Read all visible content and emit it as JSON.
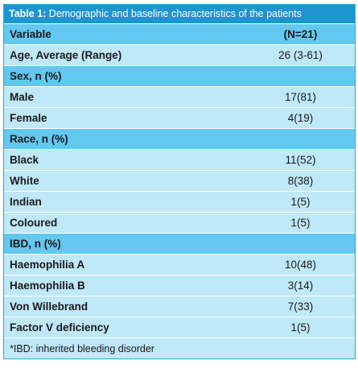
{
  "caption": {
    "label": "Table 1:",
    "text": " Demographic and baseline characteristics of the patients"
  },
  "header": {
    "variable": "Variable",
    "value": "(N=21)"
  },
  "rows": [
    {
      "type": "light",
      "variable": "Age, Average (Range)",
      "value": "26 (3-61)"
    },
    {
      "type": "section",
      "variable": "Sex, n (%)",
      "value": ""
    },
    {
      "type": "light",
      "variable": "Male",
      "value": "17(81)"
    },
    {
      "type": "light",
      "variable": "Female",
      "value": "4(19)"
    },
    {
      "type": "section",
      "variable": "Race, n (%)",
      "value": ""
    },
    {
      "type": "light",
      "variable": "Black",
      "value": "11(52)"
    },
    {
      "type": "light",
      "variable": "White",
      "value": "8(38)"
    },
    {
      "type": "light",
      "variable": "Indian",
      "value": "1(5)"
    },
    {
      "type": "light",
      "variable": "Coloured",
      "value": "1(5)"
    },
    {
      "type": "section",
      "variable": "IBD, n (%)",
      "value": ""
    },
    {
      "type": "light",
      "variable": "Haemophilia A",
      "value": "10(48)"
    },
    {
      "type": "light",
      "variable": "Haemophilia B",
      "value": "3(14)"
    },
    {
      "type": "light",
      "variable": "Von Willebrand",
      "value": "7(33)"
    },
    {
      "type": "light",
      "variable": "Factor V deficiency",
      "value": "1(5)"
    }
  ],
  "footnote": "*IBD: inherited bleeding disorder",
  "colors": {
    "caption_bg": "#1d95d2",
    "header_bg": "#62c8f0",
    "row_bg": "#bfe8f8"
  }
}
